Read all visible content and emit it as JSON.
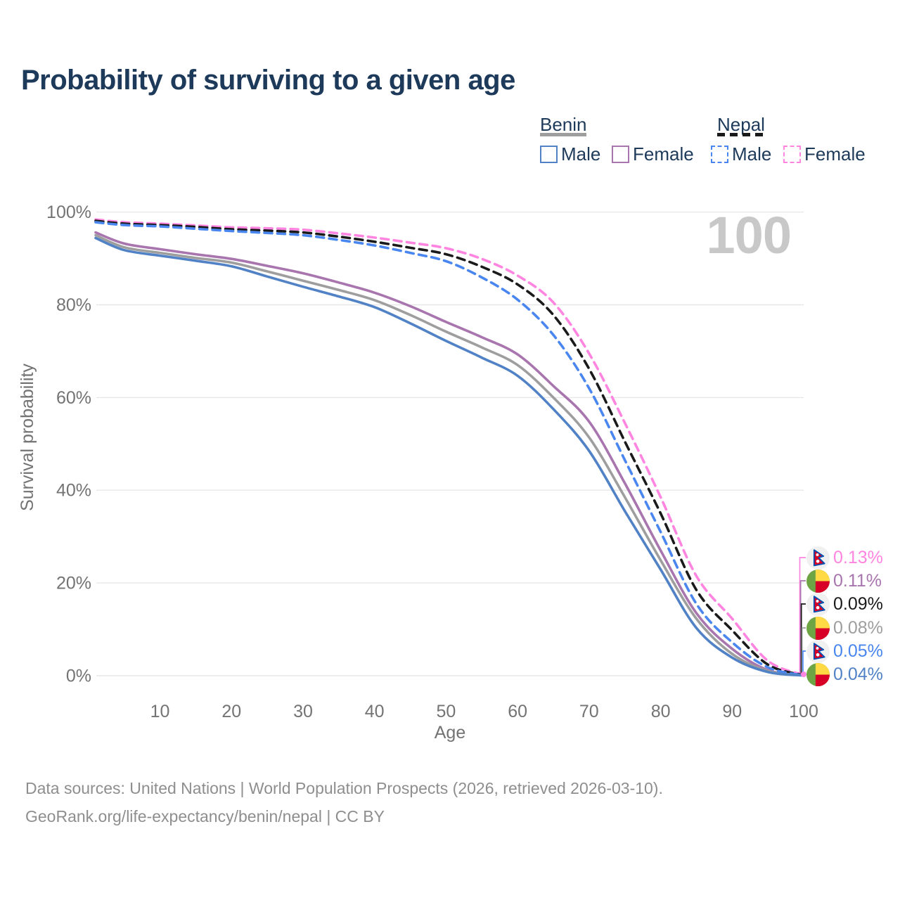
{
  "title": "Probability of surviving to a given age",
  "watermark": "100",
  "legend": {
    "benin": {
      "label": "Benin",
      "male": "Male",
      "female": "Female"
    },
    "nepal": {
      "label": "Nepal",
      "male": "Male",
      "female": "Female"
    }
  },
  "colors": {
    "benin_male": "#5182c6",
    "benin_female": "#a875ae",
    "benin_all": "#9e9e9e",
    "nepal_male": "#4a86ef",
    "nepal_female": "#ff85e0",
    "nepal_all": "#1a1a1a",
    "grid": "#e7e7e7",
    "axis_text": "#737373",
    "title_text": "#1e3a5a"
  },
  "footer": {
    "line1": "Data sources: United Nations | World Population Prospects (2026, retrieved 2026-03-10).",
    "line2": "GeoRank.org/life-expectancy/benin/nepal | CC BY"
  },
  "chart_data": {
    "type": "line",
    "title": "Probability of surviving to a given age",
    "xlabel": "Age",
    "ylabel": "Survival probability",
    "xlim": [
      1,
      100
    ],
    "ylim": [
      0,
      100
    ],
    "x_ticks": [
      10,
      20,
      30,
      40,
      50,
      60,
      70,
      80,
      90,
      100
    ],
    "y_ticks": [
      "0%",
      "20%",
      "40%",
      "60%",
      "80%",
      "100%"
    ],
    "grid": "horizontal only",
    "legend_position": "top-right",
    "ages": [
      1,
      5,
      10,
      15,
      20,
      25,
      30,
      35,
      40,
      45,
      50,
      55,
      60,
      65,
      70,
      75,
      80,
      85,
      90,
      95,
      100
    ],
    "series": [
      {
        "id": "nepal-female",
        "name": "Nepal Female",
        "country": "nepal",
        "line": "dashed",
        "color": "#ff85e0",
        "end_label": "0.13%",
        "values": [
          98.4,
          97.8,
          97.5,
          97.1,
          96.7,
          96.5,
          96.2,
          95.4,
          94.5,
          93.4,
          92.2,
          89.9,
          86.3,
          80.5,
          69.5,
          54.5,
          38.5,
          21.5,
          12.3,
          3.2,
          0.13
        ]
      },
      {
        "id": "benin-female",
        "name": "Benin Female",
        "country": "benin",
        "line": "solid",
        "color": "#a875ae",
        "end_label": "0.11%",
        "values": [
          95.6,
          93.2,
          92.0,
          90.9,
          89.9,
          88.4,
          86.8,
          84.8,
          82.6,
          79.7,
          76.3,
          73.0,
          69.3,
          62.5,
          54.8,
          41.5,
          27.0,
          13.5,
          5.8,
          1.2,
          0.11
        ]
      },
      {
        "id": "nepal-all",
        "name": "Nepal Both sexes",
        "country": "nepal",
        "line": "dashed",
        "color": "#1a1a1a",
        "end_label": "0.09%",
        "values": [
          98.1,
          97.5,
          97.2,
          96.8,
          96.3,
          96.0,
          95.6,
          94.7,
          93.6,
          92.3,
          90.9,
          88.2,
          84.4,
          77.8,
          66.2,
          50.5,
          35.0,
          18.5,
          9.8,
          2.4,
          0.09
        ]
      },
      {
        "id": "benin-all",
        "name": "Benin Both sexes",
        "country": "benin",
        "line": "solid",
        "color": "#9e9e9e",
        "end_label": "0.08%",
        "values": [
          95.0,
          92.4,
          91.2,
          90.1,
          89.1,
          87.2,
          85.2,
          83.2,
          81.0,
          77.8,
          74.2,
          70.8,
          67.0,
          60.0,
          51.4,
          38.5,
          24.9,
          12.3,
          4.7,
          1.0,
          0.08
        ]
      },
      {
        "id": "nepal-male",
        "name": "Nepal Male",
        "country": "nepal",
        "line": "dashed",
        "color": "#4a86ef",
        "end_label": "0.05%",
        "values": [
          97.8,
          97.2,
          96.9,
          96.4,
          95.9,
          95.5,
          95.0,
          94.0,
          92.8,
          91.2,
          89.4,
          85.9,
          81.1,
          73.5,
          62.0,
          46.5,
          31.0,
          15.5,
          7.2,
          1.8,
          0.05
        ]
      },
      {
        "id": "benin-male",
        "name": "Benin Male",
        "country": "benin",
        "line": "solid",
        "color": "#5182c6",
        "end_label": "0.04%",
        "values": [
          94.4,
          91.8,
          90.6,
          89.5,
          88.3,
          86.1,
          83.9,
          81.8,
          79.5,
          76.0,
          72.2,
          68.6,
          64.7,
          57.5,
          48.5,
          35.5,
          22.9,
          10.3,
          3.9,
          0.8,
          0.04
        ]
      }
    ]
  }
}
